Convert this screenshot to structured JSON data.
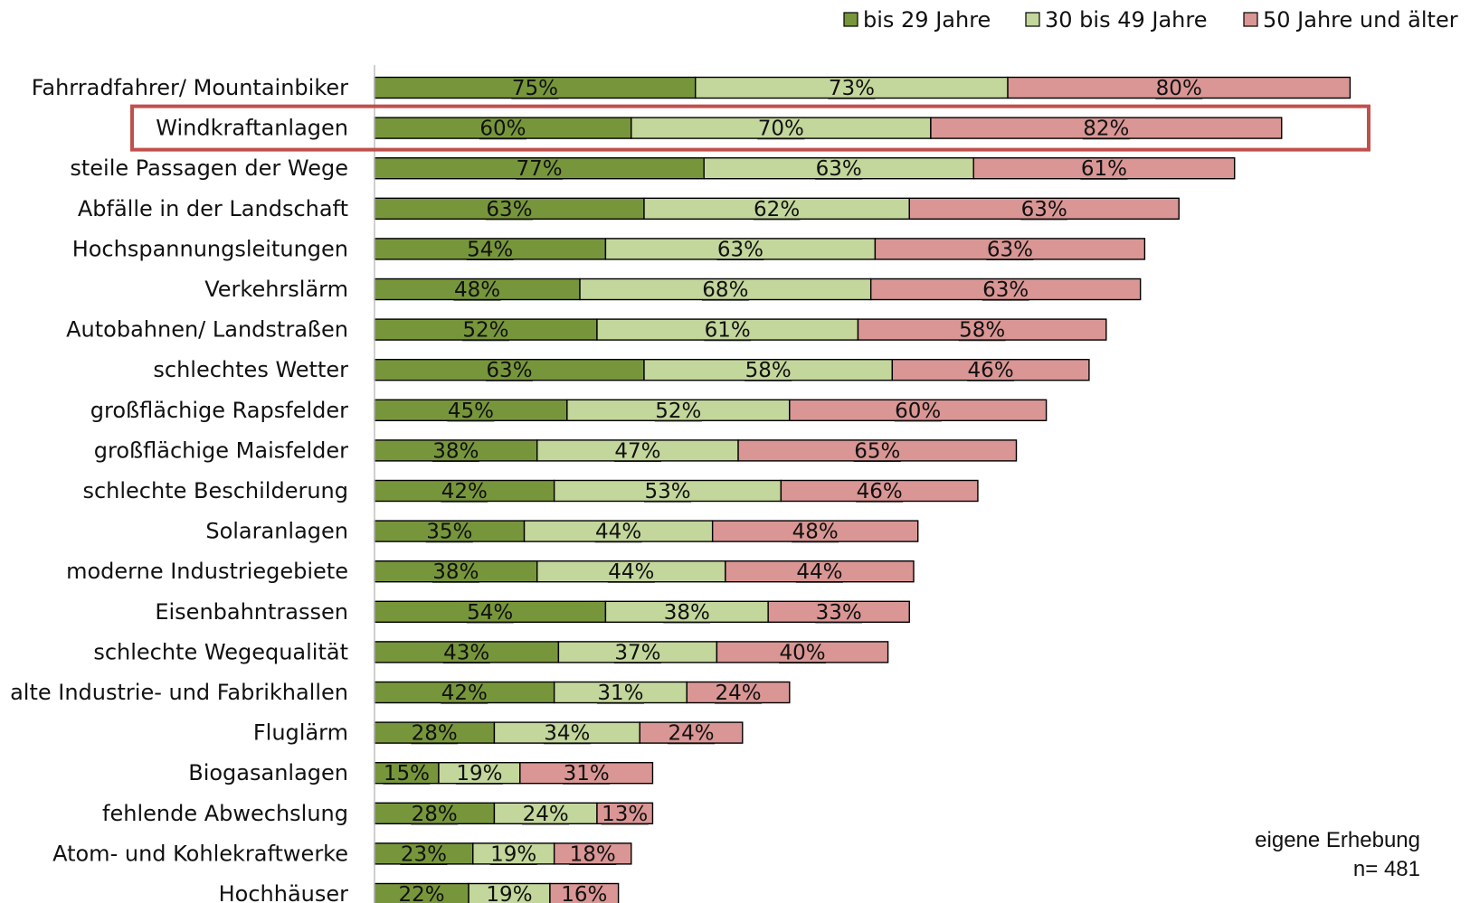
{
  "colors": {
    "bis29": "#77963b",
    "bis49": "#c3d69b",
    "ab50": "#d99694",
    "highlight": "#c0504d",
    "axis": "#bfbfbf"
  },
  "chart_data": {
    "type": "bar",
    "orientation": "horizontal",
    "stacked": true,
    "legend_position": "top-right",
    "highlighted_category": "Windkraftanlagen",
    "categories": [
      "Fahrradfahrer/ Mountainbiker",
      "Windkraftanlagen",
      "steile Passagen der Wege",
      "Abfälle in der Landschaft",
      "Hochspannungsleitungen",
      "Verkehrslärm",
      "Autobahnen/ Landstraßen",
      "schlechtes Wetter",
      "großflächige Rapsfelder",
      "großflächige Maisfelder",
      "schlechte Beschilderung",
      "Solaranlagen",
      "moderne Industriegebiete",
      "Eisenbahntrassen",
      "schlechte Wegequalität",
      "alte Industrie- und Fabrikhallen",
      "Fluglärm",
      "Biogasanlagen",
      "fehlende Abwechslung",
      "Atom- und Kohlekraftwerke",
      "Hochhäuser"
    ],
    "series": [
      {
        "name": "bis 29 Jahre",
        "values": [
          75,
          60,
          77,
          63,
          54,
          48,
          52,
          63,
          45,
          38,
          42,
          35,
          38,
          54,
          43,
          42,
          28,
          15,
          28,
          23,
          22
        ]
      },
      {
        "name": "30 bis 49 Jahre",
        "values": [
          73,
          70,
          63,
          62,
          63,
          68,
          61,
          58,
          52,
          47,
          53,
          44,
          44,
          38,
          37,
          31,
          34,
          19,
          24,
          19,
          19
        ]
      },
      {
        "name": "50 Jahre und älter",
        "values": [
          80,
          82,
          61,
          63,
          63,
          63,
          58,
          46,
          60,
          65,
          46,
          48,
          44,
          33,
          40,
          24,
          24,
          31,
          13,
          18,
          16
        ]
      }
    ],
    "annotations": [
      "eigene Erhebung",
      "n= 481"
    ]
  }
}
